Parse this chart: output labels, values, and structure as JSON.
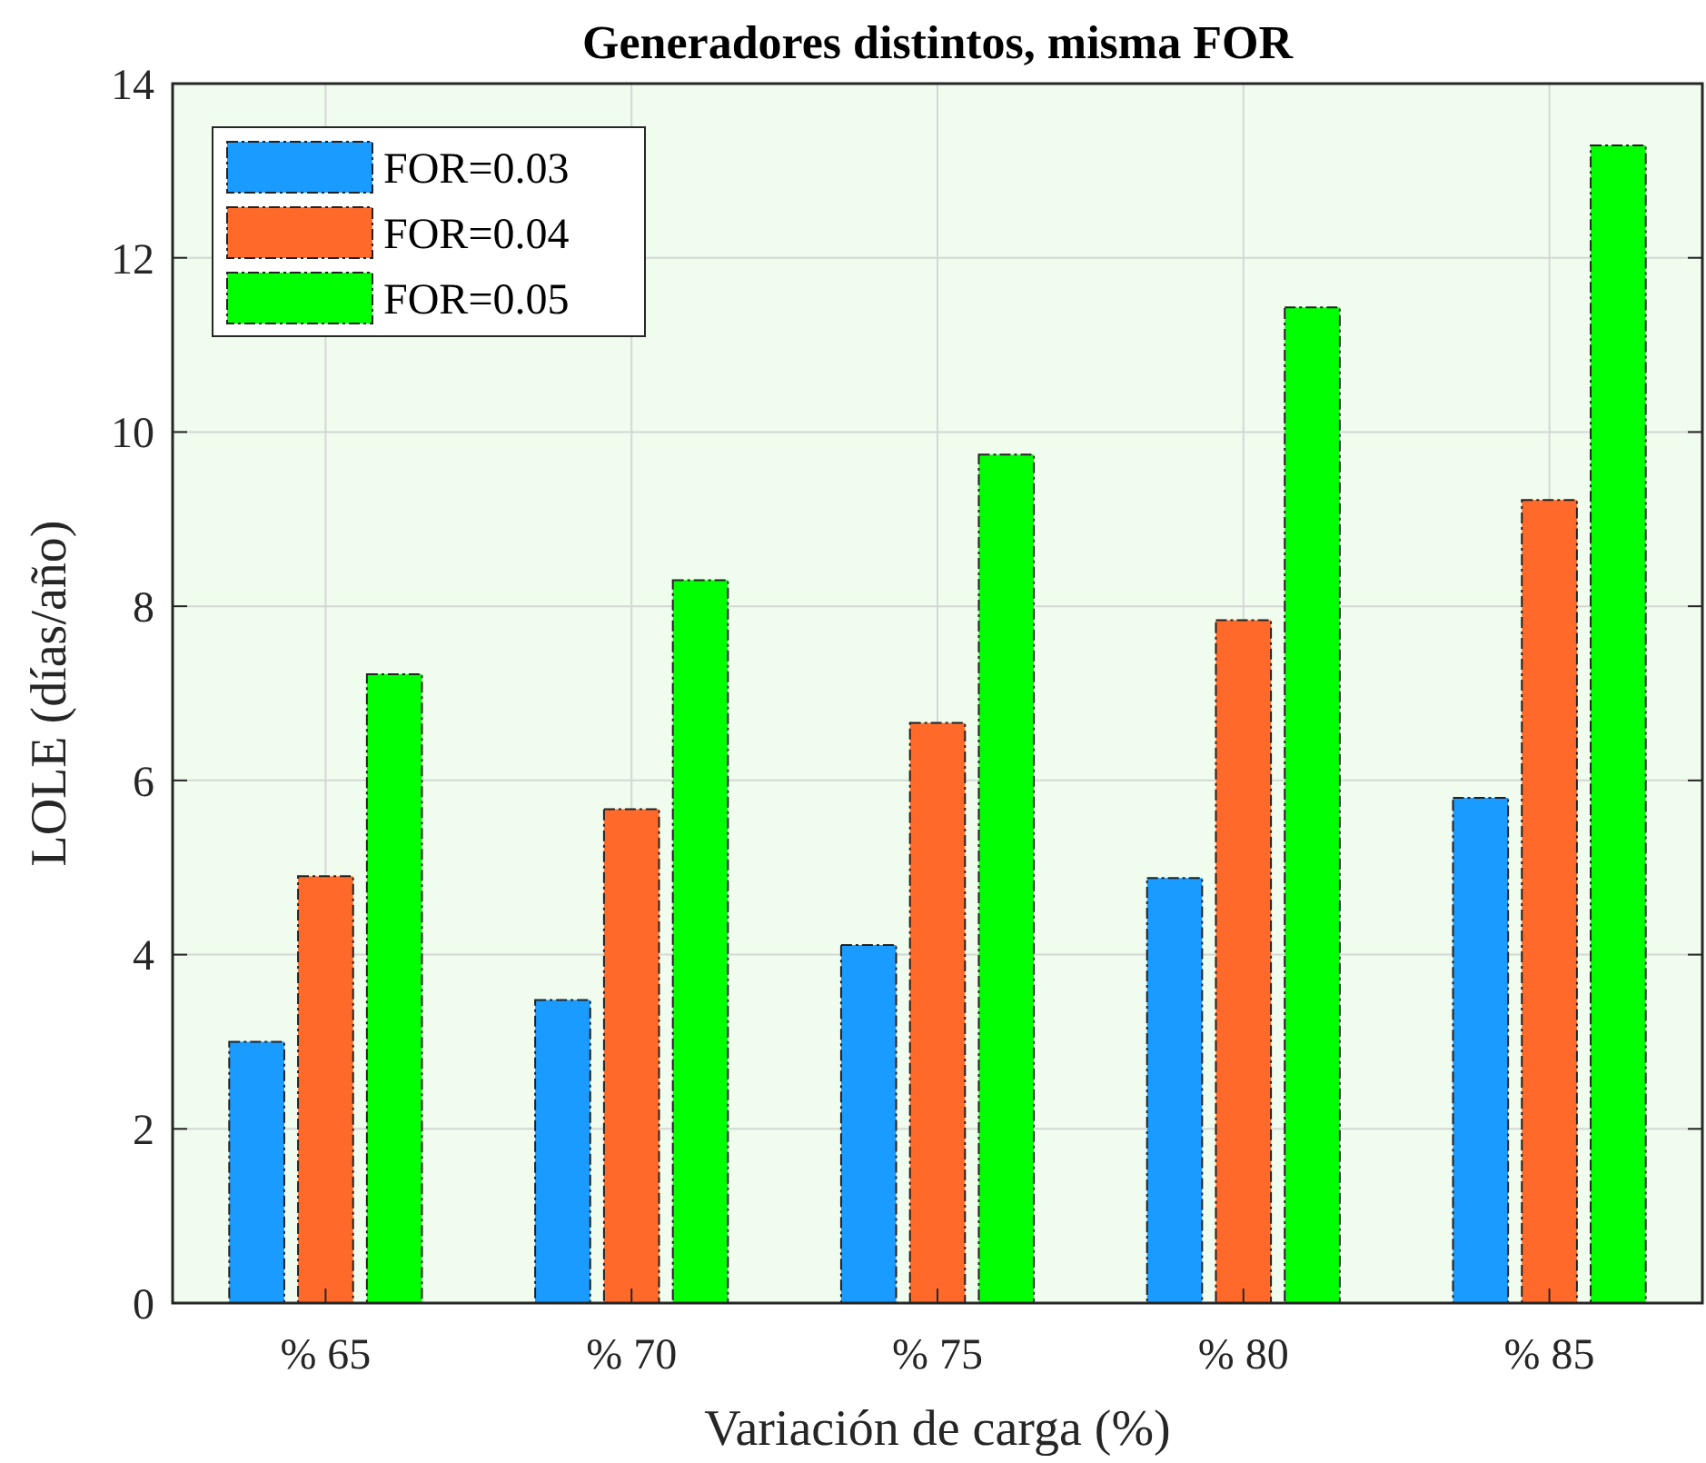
{
  "chart_data": {
    "type": "bar",
    "title": "Generadores distintos, misma FOR",
    "xlabel": "Variación de carga (%)",
    "ylabel": "LOLE (días/año)",
    "categories": [
      "% 65",
      "% 70",
      "% 75",
      "% 80",
      "% 85"
    ],
    "series": [
      {
        "name": "FOR=0.03",
        "color": "#1a9bff",
        "values": [
          3.0,
          3.48,
          4.11,
          4.88,
          5.8
        ]
      },
      {
        "name": "FOR=0.04",
        "color": "#ff6a2a",
        "values": [
          4.9,
          5.67,
          6.66,
          7.84,
          9.22
        ]
      },
      {
        "name": "FOR=0.05",
        "color": "#00ff00",
        "values": [
          7.22,
          8.3,
          9.74,
          11.43,
          13.29
        ]
      }
    ],
    "ylim": [
      0,
      14
    ],
    "yticks": [
      0,
      2,
      4,
      6,
      8,
      10,
      12,
      14
    ],
    "grid": true,
    "legend": "top left"
  }
}
